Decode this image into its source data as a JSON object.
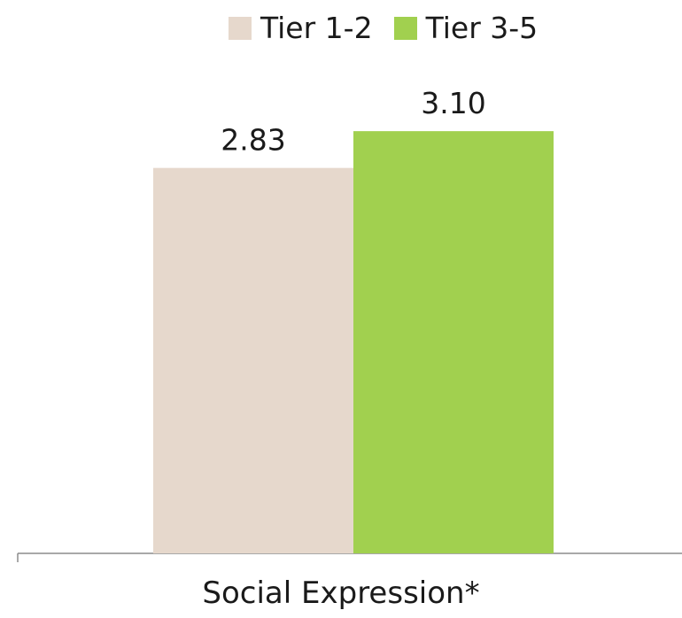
{
  "chart_data": {
    "type": "bar",
    "categories": [
      "Social Expression*"
    ],
    "series": [
      {
        "name": "Tier 1-2",
        "values": [
          2.83
        ],
        "color": "#e6d8cc",
        "value_label": "2.83"
      },
      {
        "name": "Tier 3-5",
        "values": [
          3.1
        ],
        "color": "#a1d04f",
        "value_label": "3.10"
      }
    ],
    "ylim": [
      0,
      4.05
    ],
    "grid": false,
    "legend_placement": "top-center"
  }
}
